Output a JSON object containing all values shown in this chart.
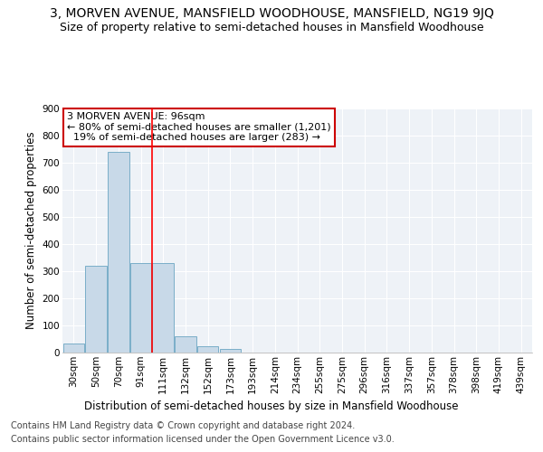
{
  "title_line1": "3, MORVEN AVENUE, MANSFIELD WOODHOUSE, MANSFIELD, NG19 9JQ",
  "title_line2": "Size of property relative to semi-detached houses in Mansfield Woodhouse",
  "xlabel": "Distribution of semi-detached houses by size in Mansfield Woodhouse",
  "ylabel": "Number of semi-detached properties",
  "footer_line1": "Contains HM Land Registry data © Crown copyright and database right 2024.",
  "footer_line2": "Contains public sector information licensed under the Open Government Licence v3.0.",
  "annotation_line1": "3 MORVEN AVENUE: 96sqm",
  "annotation_line2": "← 80% of semi-detached houses are smaller (1,201)",
  "annotation_line3": "  19% of semi-detached houses are larger (283) →",
  "bin_labels": [
    "30sqm",
    "50sqm",
    "70sqm",
    "91sqm",
    "111sqm",
    "132sqm",
    "152sqm",
    "173sqm",
    "193sqm",
    "214sqm",
    "234sqm",
    "255sqm",
    "275sqm",
    "296sqm",
    "316sqm",
    "337sqm",
    "357sqm",
    "378sqm",
    "398sqm",
    "419sqm",
    "439sqm"
  ],
  "bar_values": [
    35,
    320,
    740,
    330,
    330,
    60,
    22,
    13,
    0,
    0,
    0,
    0,
    0,
    0,
    0,
    0,
    0,
    0,
    0,
    0,
    0
  ],
  "bar_color": "#c8d9e8",
  "bar_edge_color": "#7aaec8",
  "red_line_x": 3.5,
  "ylim": [
    0,
    900
  ],
  "yticks": [
    0,
    100,
    200,
    300,
    400,
    500,
    600,
    700,
    800,
    900
  ],
  "background_color": "#eef2f7",
  "grid_color": "#ffffff",
  "annotation_box_color": "#ffffff",
  "annotation_box_edge_color": "#cc0000",
  "title_fontsize": 10,
  "subtitle_fontsize": 9,
  "axis_label_fontsize": 8.5,
  "tick_fontsize": 7.5,
  "annotation_fontsize": 8,
  "footer_fontsize": 7
}
